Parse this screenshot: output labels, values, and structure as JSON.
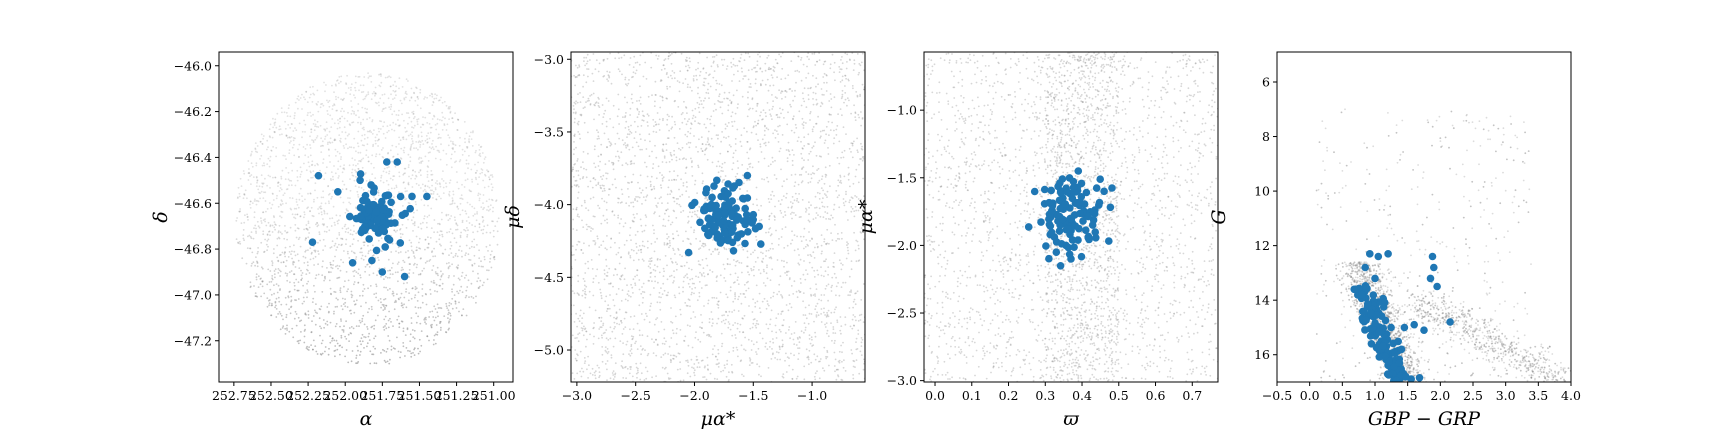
{
  "colors": {
    "background_stars": "#8c8c8c",
    "members": "#1f77b4"
  },
  "chart_data": [
    {
      "type": "scatter",
      "panel": "sky-position",
      "xlabel": "α",
      "ylabel": "δ",
      "xlim": [
        252.85,
        250.87
      ],
      "ylim": [
        -47.38,
        -45.94
      ],
      "xticks": [
        252.75,
        252.5,
        252.25,
        252.0,
        251.75,
        251.5,
        251.25,
        251.0
      ],
      "xtick_labels": [
        "252.75",
        "252.50",
        "252.25",
        "252.00",
        "251.75",
        "251.50",
        "251.25",
        "251.00"
      ],
      "yticks": [
        -46.0,
        -46.2,
        -46.4,
        -46.6,
        -46.8,
        -47.0,
        -47.2
      ],
      "ytick_labels": [
        "−46.0",
        "−46.2",
        "−46.4",
        "−46.6",
        "−46.8",
        "−47.0",
        "−47.2"
      ],
      "series": [
        {
          "role": "field",
          "region": "ellipse",
          "center": [
            251.85,
            -46.67
          ],
          "half_width": 0.89,
          "half_height": 0.64,
          "count": 2600
        },
        {
          "role": "members",
          "center": [
            251.8,
            -46.67
          ],
          "spread": [
            0.08,
            0.06
          ],
          "count": 90,
          "x": [
            252.18,
            251.72,
            251.65,
            251.55,
            252.22,
            251.45,
            251.95,
            251.82,
            251.75,
            251.6,
            252.05,
            251.9
          ],
          "y": [
            -46.48,
            -46.42,
            -46.42,
            -46.57,
            -46.77,
            -46.57,
            -46.86,
            -46.85,
            -46.9,
            -46.92,
            -46.55,
            -46.5
          ]
        }
      ],
      "grid": false
    },
    {
      "type": "scatter",
      "panel": "proper-motion",
      "xlabel": "μα*",
      "ylabel": "μδ",
      "xlim": [
        -3.05,
        -0.55
      ],
      "ylim": [
        -5.22,
        -2.95
      ],
      "xticks": [
        -3.0,
        -2.5,
        -2.0,
        -1.5,
        -1.0
      ],
      "xtick_labels": [
        "−3.0",
        "−2.5",
        "−2.0",
        "−1.5",
        "−1.0"
      ],
      "yticks": [
        -3.0,
        -3.5,
        -4.0,
        -4.5,
        -5.0
      ],
      "ytick_labels": [
        "−3.0",
        "−3.5",
        "−4.0",
        "−4.5",
        "−5.0"
      ],
      "series": [
        {
          "role": "field",
          "count": 3000
        },
        {
          "role": "members",
          "center": [
            -1.72,
            -4.08
          ],
          "spread": [
            0.12,
            0.11
          ],
          "count": 110,
          "x": [
            -2.05,
            -1.55,
            -1.85,
            -1.45
          ],
          "y": [
            -4.33,
            -3.8,
            -3.95,
            -4.15
          ]
        }
      ],
      "grid": false
    },
    {
      "type": "scatter",
      "panel": "parallax-pm",
      "xlabel": "ϖ",
      "ylabel": "μα*",
      "xlim": [
        -0.03,
        0.77
      ],
      "ylim": [
        -3.01,
        -0.57
      ],
      "xticks": [
        0.0,
        0.1,
        0.2,
        0.3,
        0.4,
        0.5,
        0.6,
        0.7
      ],
      "xtick_labels": [
        "0.0",
        "0.1",
        "0.2",
        "0.3",
        "0.4",
        "0.5",
        "0.6",
        "0.7"
      ],
      "yticks": [
        -1.0,
        -1.5,
        -2.0,
        -2.5,
        -3.0
      ],
      "ytick_labels": [
        "−1.0",
        "−1.5",
        "−2.0",
        "−2.5",
        "−3.0"
      ],
      "series": [
        {
          "role": "field",
          "count": 3200,
          "denser_band_x": [
            0.3,
            0.5
          ]
        },
        {
          "role": "members",
          "center": [
            0.37,
            -1.77
          ],
          "spread": [
            0.045,
            0.14
          ],
          "count": 110,
          "x": [
            0.39,
            0.37,
            0.33,
            0.46
          ],
          "y": [
            -1.45,
            -2.1,
            -2.05,
            -1.6
          ]
        }
      ],
      "grid": false
    },
    {
      "type": "scatter",
      "panel": "color-magnitude",
      "xlabel": "GBP − GRP",
      "ylabel": "G",
      "xlim": [
        -0.5,
        4.0
      ],
      "ylim": [
        17.0,
        4.9
      ],
      "y_inverted": true,
      "xticks": [
        -0.5,
        0.0,
        0.5,
        1.0,
        1.5,
        2.0,
        2.5,
        3.0,
        3.5,
        4.0
      ],
      "xtick_labels": [
        "−0.5",
        "0.0",
        "0.5",
        "1.0",
        "1.5",
        "2.0",
        "2.5",
        "3.0",
        "3.5",
        "4.0"
      ],
      "yticks": [
        6,
        8,
        10,
        12,
        14,
        16
      ],
      "ytick_labels": [
        "6",
        "8",
        "10",
        "12",
        "14",
        "16"
      ],
      "series": [
        {
          "role": "field",
          "count": 3400,
          "shape": "main-sequence-and-giant-branch"
        },
        {
          "role": "members",
          "count": 120,
          "x": [
            0.92,
            1.05,
            1.2,
            0.85,
            0.8,
            1.0,
            1.88,
            1.9,
            1.85,
            1.95,
            2.15,
            1.75,
            1.6,
            1.45
          ],
          "y": [
            12.3,
            12.4,
            12.3,
            12.8,
            13.8,
            13.2,
            12.4,
            12.8,
            13.2,
            13.5,
            14.8,
            15.1,
            14.9,
            15.0
          ]
        }
      ],
      "grid": false
    }
  ]
}
